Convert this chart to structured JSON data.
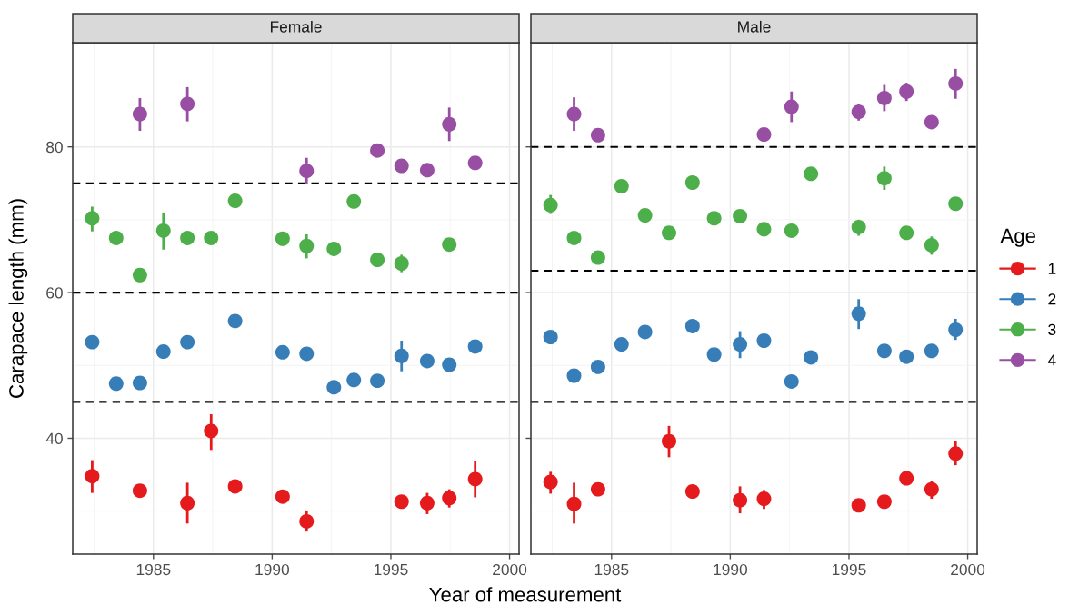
{
  "chart_data": [
    {
      "type": "scatter",
      "title": "Female",
      "xlabel": "Year of measurement",
      "ylabel": "Carapace length (mm)",
      "xlim": [
        1981.6,
        2000.4
      ],
      "ylim": [
        24.1,
        94.3
      ],
      "xticks": [
        1985,
        1990,
        1995,
        2000
      ],
      "yticks": [
        40,
        60,
        80
      ],
      "grid": true,
      "marker": "circle",
      "legend": "right",
      "ref_lines": [
        {
          "axis": "y",
          "value": 75,
          "color": "#000000",
          "line_style": "dashed"
        },
        {
          "axis": "y",
          "value": 60,
          "color": "#000000",
          "line_style": "dashed"
        },
        {
          "axis": "y",
          "value": 45,
          "color": "#000000",
          "line_style": "dashed"
        }
      ],
      "series": [
        {
          "name": "1",
          "color": "#e41a1c",
          "x": [
            1982.42,
            1984.43,
            1986.43,
            1987.43,
            1988.44,
            1990.44,
            1991.45,
            1995.45,
            1996.53,
            1997.46,
            1998.55
          ],
          "values": [
            34.8,
            32.8,
            31.1,
            41.0,
            33.4,
            32.0,
            28.6,
            31.3,
            31.1,
            31.8,
            34.4
          ],
          "errors": [
            [
              32.5,
              37.0
            ],
            null,
            [
              28.3,
              33.9
            ],
            [
              38.4,
              43.3
            ],
            null,
            null,
            [
              27.2,
              30.1
            ],
            null,
            [
              29.6,
              32.5
            ],
            [
              30.5,
              33.0
            ],
            [
              31.9,
              36.9
            ]
          ]
        },
        {
          "name": "2",
          "color": "#377eb8",
          "x": [
            1982.42,
            1983.43,
            1984.43,
            1985.42,
            1986.43,
            1988.44,
            1990.44,
            1991.45,
            1992.6,
            1993.44,
            1994.43,
            1995.45,
            1996.53,
            1997.46,
            1998.55
          ],
          "values": [
            53.2,
            47.5,
            47.6,
            51.9,
            53.2,
            56.1,
            51.8,
            51.6,
            47.0,
            48.0,
            47.9,
            51.3,
            50.6,
            50.1,
            52.6
          ],
          "errors": [
            null,
            null,
            null,
            null,
            null,
            null,
            null,
            null,
            null,
            null,
            null,
            [
              49.2,
              53.4
            ],
            null,
            null,
            null
          ]
        },
        {
          "name": "3",
          "color": "#4daf4a",
          "x": [
            1982.42,
            1983.43,
            1984.43,
            1985.42,
            1986.43,
            1987.43,
            1988.44,
            1990.44,
            1991.45,
            1992.6,
            1993.44,
            1994.43,
            1995.45,
            1997.46
          ],
          "values": [
            70.2,
            67.5,
            62.4,
            68.5,
            67.5,
            67.5,
            72.6,
            67.4,
            66.4,
            66.0,
            72.5,
            64.5,
            64.0,
            66.6
          ],
          "errors": [
            [
              68.4,
              71.8
            ],
            null,
            null,
            [
              65.9,
              71.0
            ],
            null,
            null,
            null,
            null,
            [
              64.7,
              68.0
            ],
            null,
            null,
            null,
            [
              62.8,
              65.2
            ],
            null
          ]
        },
        {
          "name": "4",
          "color": "#984ea3",
          "x": [
            1984.43,
            1986.43,
            1991.45,
            1994.43,
            1995.45,
            1996.53,
            1997.46,
            1998.55
          ],
          "values": [
            84.5,
            85.9,
            76.7,
            79.5,
            77.4,
            76.8,
            83.1,
            77.8
          ],
          "errors": [
            [
              82.2,
              86.7
            ],
            [
              83.5,
              88.2
            ],
            [
              74.9,
              78.5
            ],
            null,
            null,
            null,
            [
              80.8,
              85.4
            ],
            null
          ]
        }
      ]
    },
    {
      "type": "scatter",
      "title": "Male",
      "legend_title": "Age",
      "xlim": [
        1981.6,
        2000.4
      ],
      "ylim": [
        24.1,
        94.3
      ],
      "xticks": [
        1985,
        1990,
        1995,
        2000
      ],
      "yticks": [
        40,
        60,
        80
      ],
      "tick_labels": "x",
      "grid": true,
      "marker": "circle",
      "legend": "right",
      "ref_lines": [
        {
          "axis": "y",
          "value": 80,
          "color": "#000000",
          "line_style": "dashed"
        },
        {
          "axis": "y",
          "value": 63,
          "color": "#000000",
          "line_style": "dashed"
        },
        {
          "axis": "y",
          "value": 45,
          "color": "#000000",
          "line_style": "dashed"
        }
      ],
      "series": [
        {
          "name": "1",
          "color": "#e41a1c",
          "x": [
            1982.43,
            1983.42,
            1984.43,
            1987.42,
            1988.41,
            1990.41,
            1991.42,
            1995.41,
            1996.49,
            1997.42,
            1998.48,
            1999.49
          ],
          "values": [
            34.0,
            31.0,
            33.0,
            39.6,
            32.7,
            31.5,
            31.7,
            30.8,
            31.3,
            34.5,
            33.0,
            37.9
          ],
          "errors": [
            [
              32.4,
              35.4
            ],
            [
              28.3,
              33.9
            ],
            null,
            [
              37.4,
              41.7
            ],
            null,
            [
              29.7,
              33.4
            ],
            [
              30.3,
              32.9
            ],
            null,
            null,
            null,
            [
              31.7,
              34.2
            ],
            [
              36.3,
              39.6
            ]
          ]
        },
        {
          "name": "2",
          "color": "#377eb8",
          "x": [
            1982.43,
            1983.42,
            1984.43,
            1985.42,
            1986.41,
            1988.41,
            1989.32,
            1990.41,
            1991.42,
            1992.58,
            1993.4,
            1995.41,
            1996.49,
            1997.42,
            1998.48,
            1999.49
          ],
          "values": [
            53.9,
            48.6,
            49.8,
            52.9,
            54.6,
            55.4,
            51.5,
            52.9,
            53.4,
            47.8,
            51.1,
            57.1,
            52.0,
            51.2,
            52.0,
            54.9
          ],
          "errors": [
            null,
            null,
            null,
            null,
            null,
            null,
            null,
            [
              51.0,
              54.7
            ],
            null,
            null,
            null,
            [
              55.0,
              59.1
            ],
            null,
            null,
            null,
            [
              53.5,
              56.4
            ]
          ]
        },
        {
          "name": "3",
          "color": "#4daf4a",
          "x": [
            1982.43,
            1983.42,
            1984.43,
            1985.42,
            1986.41,
            1987.42,
            1988.41,
            1989.32,
            1990.41,
            1991.42,
            1992.58,
            1993.4,
            1995.41,
            1996.49,
            1997.42,
            1998.48,
            1999.49
          ],
          "values": [
            72.0,
            67.5,
            64.8,
            74.6,
            70.6,
            68.2,
            75.1,
            70.2,
            70.5,
            68.7,
            68.5,
            76.3,
            69.0,
            75.7,
            68.2,
            66.5,
            72.2
          ],
          "errors": [
            [
              70.8,
              73.4
            ],
            null,
            null,
            null,
            null,
            null,
            null,
            null,
            null,
            null,
            null,
            null,
            [
              67.8,
              70.0
            ],
            [
              74.1,
              77.3
            ],
            null,
            [
              65.2,
              67.7
            ],
            null
          ]
        },
        {
          "name": "4",
          "color": "#984ea3",
          "x": [
            1983.42,
            1984.43,
            1991.42,
            1992.58,
            1995.41,
            1996.49,
            1997.42,
            1998.48,
            1999.49
          ],
          "values": [
            84.5,
            81.6,
            81.7,
            85.5,
            84.8,
            86.7,
            87.6,
            83.4,
            88.7
          ],
          "errors": [
            [
              82.2,
              86.8
            ],
            null,
            null,
            [
              83.4,
              87.6
            ],
            [
              83.6,
              85.9
            ],
            [
              84.9,
              88.5
            ],
            [
              86.3,
              88.8
            ],
            null,
            [
              86.6,
              90.7
            ]
          ]
        }
      ]
    }
  ]
}
